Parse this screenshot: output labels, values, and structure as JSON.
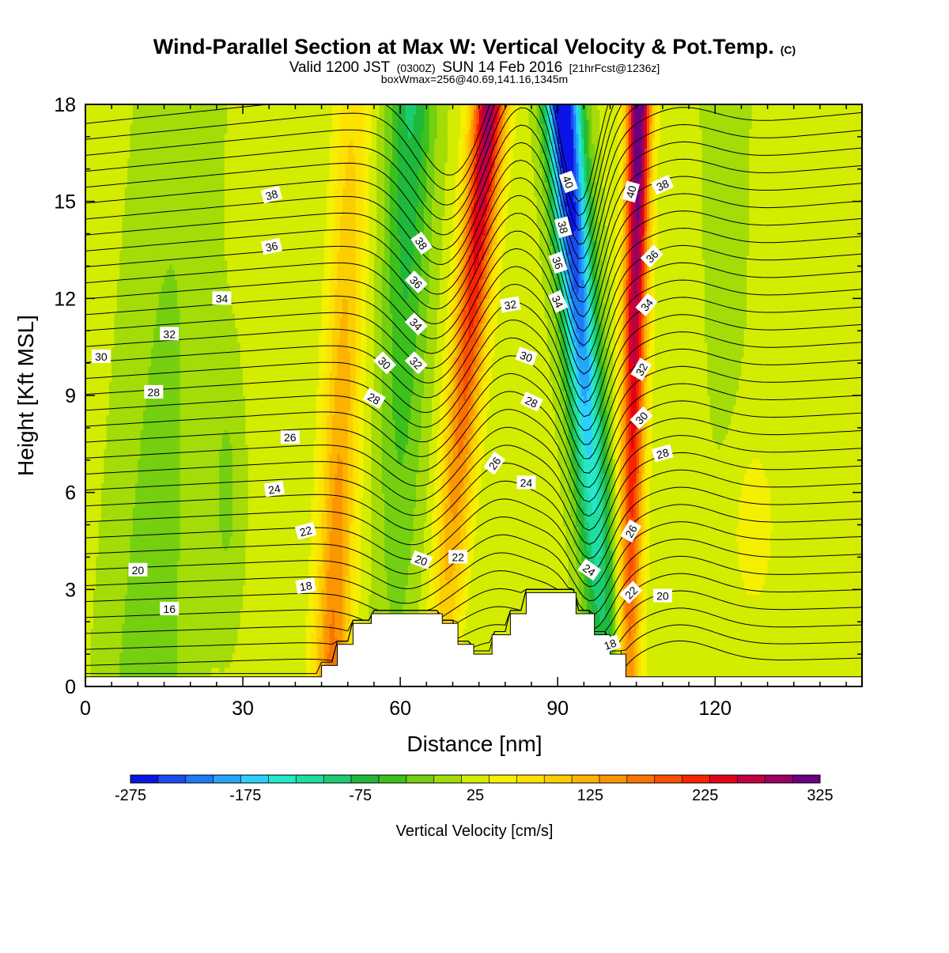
{
  "header": {
    "title": "Wind-Parallel Section at Max W: Vertical Velocity & Pot.Temp.",
    "copyright": "(C)",
    "valid_prefix": "Valid 1200 JST",
    "valid_utc": "(0300Z)",
    "valid_date": "SUN 14 Feb 2016",
    "forecast": "[21hrFcst@1236z]",
    "box_info": "boxWmax=256@40.69,141.16,1345m"
  },
  "chart_data": {
    "type": "heatmap",
    "title": "Wind-Parallel Section at Max W: Vertical Velocity & Pot.Temp.",
    "xlabel": "Distance [nm]",
    "ylabel": "Height [Kft MSL]",
    "xlim": [
      0,
      148
    ],
    "ylim": [
      0,
      18
    ],
    "x_ticks": [
      0,
      30,
      60,
      90,
      120
    ],
    "x_tick_labels": [
      "0",
      "30",
      "60",
      "90",
      "120"
    ],
    "y_ticks": [
      0,
      3,
      6,
      9,
      12,
      15,
      18
    ],
    "y_tick_labels": [
      "0",
      "3",
      "6",
      "9",
      "12",
      "15",
      "18"
    ],
    "colorbar": {
      "title": "Vertical Velocity [cm/s]",
      "labels": [
        "-275",
        "-175",
        "-75",
        "25",
        "125",
        "225",
        "325"
      ],
      "levels": [
        -275,
        325
      ],
      "colors": [
        "#0a14e6",
        "#1a4cf0",
        "#1f7af7",
        "#26a6fb",
        "#2bd0fd",
        "#24e8c8",
        "#20dca0",
        "#1ccc70",
        "#20b83a",
        "#3cc01c",
        "#74d010",
        "#a4dc08",
        "#d4ec00",
        "#f4f000",
        "#fde200",
        "#fcce00",
        "#fcb400",
        "#fc9600",
        "#fc7400",
        "#fc5000",
        "#f82400",
        "#e40018",
        "#c00040",
        "#9c0060",
        "#6c0080"
      ]
    },
    "terrain_kft": [
      {
        "x": 0,
        "h": 0.3
      },
      {
        "x": 45,
        "h": 0.3
      },
      {
        "x": 45,
        "h": 0.65
      },
      {
        "x": 48,
        "h": 0.65
      },
      {
        "x": 48,
        "h": 1.3
      },
      {
        "x": 51,
        "h": 1.3
      },
      {
        "x": 51,
        "h": 1.95
      },
      {
        "x": 54.5,
        "h": 1.95
      },
      {
        "x": 54.5,
        "h": 2.25
      },
      {
        "x": 68,
        "h": 2.25
      },
      {
        "x": 68,
        "h": 1.95
      },
      {
        "x": 71,
        "h": 1.95
      },
      {
        "x": 71,
        "h": 1.3
      },
      {
        "x": 74,
        "h": 1.3
      },
      {
        "x": 74,
        "h": 1.0
      },
      {
        "x": 77.5,
        "h": 1.0
      },
      {
        "x": 77.5,
        "h": 1.6
      },
      {
        "x": 81,
        "h": 1.6
      },
      {
        "x": 81,
        "h": 2.25
      },
      {
        "x": 84,
        "h": 2.25
      },
      {
        "x": 84,
        "h": 2.9
      },
      {
        "x": 93.5,
        "h": 2.9
      },
      {
        "x": 93.5,
        "h": 2.25
      },
      {
        "x": 97,
        "h": 2.25
      },
      {
        "x": 97,
        "h": 1.6
      },
      {
        "x": 100,
        "h": 1.6
      },
      {
        "x": 100,
        "h": 1.0
      },
      {
        "x": 103,
        "h": 1.0
      },
      {
        "x": 103,
        "h": 0.3
      },
      {
        "x": 148,
        "h": 0.3
      }
    ],
    "contour_labels": [
      {
        "text": "38",
        "x": 35.5,
        "y": 15.2,
        "rot": -15
      },
      {
        "text": "36",
        "x": 35.5,
        "y": 13.6,
        "rot": -12
      },
      {
        "text": "34",
        "x": 26,
        "y": 12.0,
        "rot": 0
      },
      {
        "text": "32",
        "x": 16,
        "y": 10.9,
        "rot": 0
      },
      {
        "text": "30",
        "x": 3,
        "y": 10.2,
        "rot": 0
      },
      {
        "text": "28",
        "x": 13,
        "y": 9.1,
        "rot": 0
      },
      {
        "text": "26",
        "x": 39,
        "y": 7.7,
        "rot": 0
      },
      {
        "text": "24",
        "x": 36,
        "y": 6.1,
        "rot": -10
      },
      {
        "text": "22",
        "x": 42,
        "y": 4.8,
        "rot": -15
      },
      {
        "text": "20",
        "x": 10,
        "y": 3.6,
        "rot": 0
      },
      {
        "text": "18",
        "x": 42,
        "y": 3.1,
        "rot": -10
      },
      {
        "text": "16",
        "x": 16,
        "y": 2.4,
        "rot": 0
      },
      {
        "text": "38",
        "x": 64,
        "y": 13.7,
        "rot": 55
      },
      {
        "text": "36",
        "x": 63,
        "y": 12.5,
        "rot": 45
      },
      {
        "text": "34",
        "x": 63,
        "y": 11.2,
        "rot": 45
      },
      {
        "text": "32",
        "x": 63,
        "y": 10.0,
        "rot": 45
      },
      {
        "text": "30",
        "x": 57,
        "y": 10.0,
        "rot": 45
      },
      {
        "text": "28",
        "x": 55,
        "y": 8.9,
        "rot": 30
      },
      {
        "text": "20",
        "x": 64,
        "y": 3.9,
        "rot": 20
      },
      {
        "text": "22",
        "x": 71,
        "y": 4.0,
        "rot": 0
      },
      {
        "text": "40",
        "x": 92,
        "y": 15.6,
        "rot": 70
      },
      {
        "text": "38",
        "x": 91,
        "y": 14.2,
        "rot": 75
      },
      {
        "text": "36",
        "x": 90,
        "y": 13.1,
        "rot": 70
      },
      {
        "text": "34",
        "x": 90,
        "y": 11.9,
        "rot": 65
      },
      {
        "text": "32",
        "x": 81,
        "y": 11.8,
        "rot": -10
      },
      {
        "text": "30",
        "x": 84,
        "y": 10.2,
        "rot": 20
      },
      {
        "text": "28",
        "x": 85,
        "y": 8.8,
        "rot": 25
      },
      {
        "text": "26",
        "x": 78,
        "y": 6.9,
        "rot": -55
      },
      {
        "text": "24",
        "x": 84,
        "y": 6.3,
        "rot": 0
      },
      {
        "text": "24",
        "x": 96,
        "y": 3.6,
        "rot": 35
      },
      {
        "text": "40",
        "x": 104,
        "y": 15.3,
        "rot": -75
      },
      {
        "text": "38",
        "x": 110,
        "y": 15.5,
        "rot": -25
      },
      {
        "text": "36",
        "x": 108,
        "y": 13.3,
        "rot": -45
      },
      {
        "text": "34",
        "x": 107,
        "y": 11.8,
        "rot": -50
      },
      {
        "text": "32",
        "x": 106,
        "y": 9.8,
        "rot": -60
      },
      {
        "text": "30",
        "x": 106,
        "y": 8.3,
        "rot": -45
      },
      {
        "text": "28",
        "x": 110,
        "y": 7.2,
        "rot": -15
      },
      {
        "text": "26",
        "x": 104,
        "y": 4.8,
        "rot": -60
      },
      {
        "text": "22",
        "x": 104,
        "y": 2.9,
        "rot": -45
      },
      {
        "text": "20",
        "x": 110,
        "y": 2.8,
        "rot": 0
      },
      {
        "text": "18",
        "x": 100,
        "y": 1.3,
        "rot": -20
      }
    ],
    "legend": "bottom colorbar",
    "grid": false
  }
}
